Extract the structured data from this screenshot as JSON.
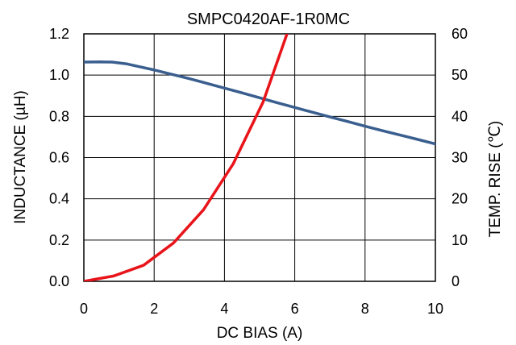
{
  "chart_data": {
    "type": "line",
    "title": "SMPC0420AF-1R0MC",
    "xlabel": "DC BIAS (A)",
    "ylabel_left": "INDUCTANCE (µH)",
    "ylabel_right": "TEMP. RISE (℃)",
    "xlim": [
      0,
      10
    ],
    "ylim_left": [
      0,
      1.2
    ],
    "ylim_right": [
      0,
      60
    ],
    "x_ticks": [
      "0",
      "2",
      "4",
      "6",
      "8",
      "10"
    ],
    "y_ticks_left": [
      "0.0",
      "0.2",
      "0.4",
      "0.6",
      "0.8",
      "1.0",
      "1.2"
    ],
    "y_ticks_right": [
      "0",
      "10",
      "20",
      "30",
      "40",
      "50",
      "60"
    ],
    "grid": true,
    "series": [
      {
        "axis": "left",
        "color": "#3a5f8f",
        "x": [
          0,
          0.5,
          0.8,
          1.2,
          1.6,
          2.0,
          2.5,
          3.0,
          3.5,
          4.0,
          4.5,
          5.0,
          5.5,
          6.0,
          6.5,
          7.0,
          7.5,
          8.0,
          8.5,
          9.0,
          9.5,
          10.0
        ],
        "y": [
          1.063,
          1.064,
          1.063,
          1.055,
          1.04,
          1.025,
          1.004,
          0.983,
          0.96,
          0.937,
          0.914,
          0.89,
          0.866,
          0.843,
          0.82,
          0.797,
          0.775,
          0.752,
          0.73,
          0.709,
          0.688,
          0.666
        ]
      },
      {
        "axis": "right",
        "color": "#e8141a",
        "x": [
          0,
          0.85,
          1.7,
          2.55,
          3.4,
          4.25,
          5.1,
          5.8
        ],
        "y": [
          0,
          1.3,
          3.9,
          9.3,
          17.3,
          28.5,
          43.5,
          60.5
        ]
      }
    ]
  }
}
